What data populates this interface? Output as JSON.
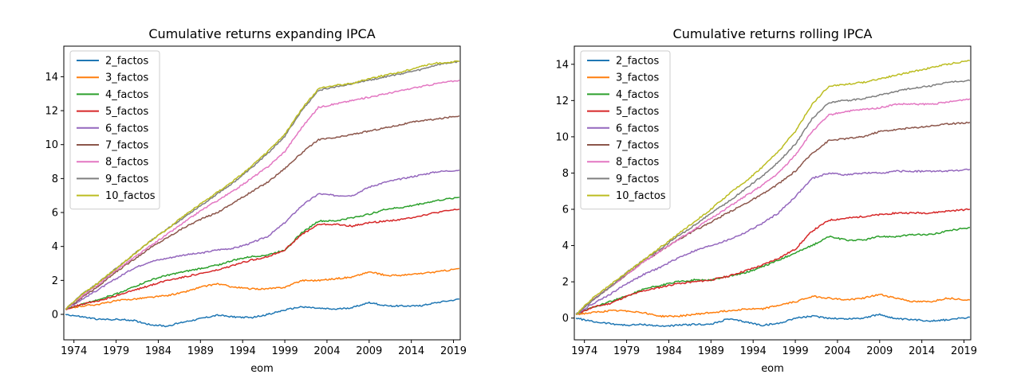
{
  "chart_data": [
    {
      "type": "line",
      "title": "Cumulative returns expanding IPCA",
      "xlabel": "eom",
      "ylabel": "",
      "xlim": [
        1972.8,
        2019.8
      ],
      "ylim": [
        -1.5,
        15.8
      ],
      "xticks": [
        1974,
        1979,
        1984,
        1989,
        1994,
        1999,
        2004,
        2009,
        2014,
        2019
      ],
      "yticks": [
        0,
        2,
        4,
        6,
        8,
        10,
        12,
        14
      ],
      "legend": "top-left",
      "grid": false,
      "x": [
        1973,
        1975,
        1977,
        1979,
        1981,
        1983,
        1985,
        1987,
        1989,
        1991,
        1993,
        1995,
        1997,
        1999,
        2001,
        2003,
        2005,
        2007,
        2009,
        2011,
        2013,
        2015,
        2017,
        2019.7
      ],
      "series": [
        {
          "name": "2_factos",
          "color": "#1f77b4",
          "values": [
            0.0,
            -0.15,
            -0.3,
            -0.3,
            -0.35,
            -0.6,
            -0.7,
            -0.45,
            -0.25,
            -0.05,
            -0.15,
            -0.2,
            0.0,
            0.25,
            0.45,
            0.35,
            0.3,
            0.4,
            0.7,
            0.5,
            0.5,
            0.5,
            0.7,
            0.9
          ]
        },
        {
          "name": "3_factos",
          "color": "#ff7f0e",
          "values": [
            0.3,
            0.5,
            0.6,
            0.8,
            0.9,
            1.0,
            1.1,
            1.3,
            1.6,
            1.8,
            1.6,
            1.5,
            1.5,
            1.6,
            2.0,
            2.0,
            2.1,
            2.2,
            2.5,
            2.3,
            2.3,
            2.4,
            2.5,
            2.7
          ]
        },
        {
          "name": "4_factos",
          "color": "#2ca02c",
          "values": [
            0.3,
            0.6,
            0.9,
            1.2,
            1.6,
            2.0,
            2.3,
            2.5,
            2.7,
            2.9,
            3.2,
            3.4,
            3.5,
            3.8,
            4.8,
            5.5,
            5.5,
            5.7,
            5.9,
            6.2,
            6.3,
            6.5,
            6.7,
            6.9
          ]
        },
        {
          "name": "5_factos",
          "color": "#d62728",
          "values": [
            0.3,
            0.6,
            0.8,
            1.1,
            1.4,
            1.7,
            2.0,
            2.2,
            2.4,
            2.6,
            2.9,
            3.2,
            3.4,
            3.8,
            4.7,
            5.3,
            5.3,
            5.2,
            5.4,
            5.5,
            5.6,
            5.8,
            6.0,
            6.2
          ]
        },
        {
          "name": "6_factos",
          "color": "#9467bd",
          "values": [
            0.3,
            0.9,
            1.5,
            2.1,
            2.7,
            3.1,
            3.3,
            3.5,
            3.6,
            3.8,
            3.9,
            4.2,
            4.6,
            5.4,
            6.4,
            7.1,
            7.0,
            7.0,
            7.5,
            7.8,
            8.0,
            8.2,
            8.4,
            8.5
          ]
        },
        {
          "name": "7_factos",
          "color": "#8c564b",
          "values": [
            0.3,
            1.0,
            1.7,
            2.5,
            3.2,
            3.9,
            4.5,
            5.1,
            5.6,
            6.0,
            6.6,
            7.2,
            7.8,
            8.6,
            9.5,
            10.3,
            10.4,
            10.6,
            10.8,
            11.0,
            11.2,
            11.4,
            11.5,
            11.7
          ]
        },
        {
          "name": "8_factos",
          "color": "#e377c2",
          "values": [
            0.3,
            1.1,
            1.8,
            2.6,
            3.3,
            4.0,
            4.7,
            5.4,
            6.1,
            6.7,
            7.3,
            8.0,
            8.7,
            9.6,
            11.0,
            12.2,
            12.4,
            12.6,
            12.8,
            13.0,
            13.2,
            13.4,
            13.6,
            13.8
          ]
        },
        {
          "name": "9_factos",
          "color": "#7f7f7f",
          "values": [
            0.3,
            1.2,
            1.9,
            2.7,
            3.5,
            4.3,
            5.0,
            5.7,
            6.4,
            7.1,
            7.8,
            8.6,
            9.5,
            10.5,
            12.0,
            13.2,
            13.4,
            13.6,
            13.8,
            14.0,
            14.2,
            14.4,
            14.7,
            14.9
          ]
        },
        {
          "name": "10_factos",
          "color": "#bcbd22",
          "values": [
            0.3,
            1.2,
            1.9,
            2.7,
            3.5,
            4.3,
            5.0,
            5.8,
            6.5,
            7.2,
            7.9,
            8.7,
            9.6,
            10.6,
            12.1,
            13.3,
            13.5,
            13.6,
            13.9,
            14.1,
            14.3,
            14.6,
            14.8,
            14.9
          ]
        }
      ]
    },
    {
      "type": "line",
      "title": "Cumulative returns rolling IPCA",
      "xlabel": "eom",
      "ylabel": "",
      "xlim": [
        1972.8,
        2019.8
      ],
      "ylim": [
        -1.2,
        15.0
      ],
      "xticks": [
        1974,
        1979,
        1984,
        1989,
        1994,
        1999,
        2004,
        2009,
        2014,
        2019
      ],
      "yticks": [
        0,
        2,
        4,
        6,
        8,
        10,
        12,
        14
      ],
      "legend": "top-left",
      "grid": false,
      "x": [
        1973,
        1975,
        1977,
        1979,
        1981,
        1983,
        1985,
        1987,
        1989,
        1991,
        1993,
        1995,
        1997,
        1999,
        2001,
        2003,
        2005,
        2007,
        2009,
        2011,
        2013,
        2015,
        2017,
        2019.7
      ],
      "series": [
        {
          "name": "2_factos",
          "color": "#1f77b4",
          "values": [
            0.0,
            -0.2,
            -0.3,
            -0.4,
            -0.35,
            -0.45,
            -0.4,
            -0.35,
            -0.35,
            -0.05,
            -0.2,
            -0.4,
            -0.3,
            0.0,
            0.1,
            0.0,
            -0.05,
            0.0,
            0.2,
            -0.05,
            -0.1,
            -0.15,
            -0.1,
            0.05
          ]
        },
        {
          "name": "3_factos",
          "color": "#ff7f0e",
          "values": [
            0.2,
            0.3,
            0.4,
            0.4,
            0.3,
            0.1,
            0.1,
            0.2,
            0.3,
            0.4,
            0.5,
            0.5,
            0.7,
            0.9,
            1.2,
            1.1,
            1.0,
            1.1,
            1.3,
            1.1,
            0.9,
            0.9,
            1.1,
            1.0
          ]
        },
        {
          "name": "4_factos",
          "color": "#2ca02c",
          "values": [
            0.2,
            0.6,
            0.9,
            1.2,
            1.6,
            1.8,
            2.0,
            2.1,
            2.1,
            2.3,
            2.5,
            2.8,
            3.2,
            3.6,
            4.0,
            4.5,
            4.3,
            4.3,
            4.5,
            4.5,
            4.6,
            4.6,
            4.8,
            5.0
          ]
        },
        {
          "name": "5_factos",
          "color": "#d62728",
          "values": [
            0.2,
            0.6,
            0.8,
            1.2,
            1.5,
            1.7,
            1.9,
            2.0,
            2.1,
            2.3,
            2.6,
            2.9,
            3.3,
            3.8,
            4.8,
            5.4,
            5.5,
            5.6,
            5.7,
            5.8,
            5.8,
            5.8,
            5.9,
            6.0
          ]
        },
        {
          "name": "6_factos",
          "color": "#9467bd",
          "values": [
            0.2,
            0.8,
            1.3,
            1.9,
            2.4,
            2.8,
            3.3,
            3.7,
            4.0,
            4.3,
            4.7,
            5.2,
            5.8,
            6.7,
            7.7,
            8.0,
            7.9,
            8.0,
            8.0,
            8.1,
            8.1,
            8.1,
            8.1,
            8.2
          ]
        },
        {
          "name": "7_factos",
          "color": "#8c564b",
          "values": [
            0.2,
            1.0,
            1.7,
            2.4,
            3.1,
            3.7,
            4.3,
            4.8,
            5.3,
            5.8,
            6.3,
            6.8,
            7.4,
            8.1,
            9.1,
            9.8,
            9.9,
            10.0,
            10.3,
            10.4,
            10.5,
            10.6,
            10.7,
            10.8
          ]
        },
        {
          "name": "8_factos",
          "color": "#e377c2",
          "values": [
            0.2,
            1.0,
            1.7,
            2.4,
            3.1,
            3.7,
            4.3,
            4.9,
            5.5,
            6.1,
            6.7,
            7.3,
            8.0,
            9.0,
            10.3,
            11.2,
            11.4,
            11.5,
            11.6,
            11.8,
            11.8,
            11.8,
            11.9,
            12.1
          ]
        },
        {
          "name": "9_factos",
          "color": "#7f7f7f",
          "values": [
            0.2,
            1.0,
            1.7,
            2.5,
            3.2,
            3.8,
            4.5,
            5.1,
            5.8,
            6.4,
            7.1,
            7.8,
            8.6,
            9.6,
            11.0,
            11.9,
            12.0,
            12.1,
            12.3,
            12.5,
            12.7,
            12.8,
            13.0,
            13.1
          ]
        },
        {
          "name": "10_factos",
          "color": "#bcbd22",
          "values": [
            0.2,
            1.1,
            1.8,
            2.5,
            3.2,
            3.9,
            4.6,
            5.3,
            6.0,
            6.8,
            7.5,
            8.3,
            9.2,
            10.3,
            11.8,
            12.8,
            12.9,
            13.0,
            13.2,
            13.4,
            13.6,
            13.8,
            14.0,
            14.2
          ]
        }
      ]
    }
  ]
}
